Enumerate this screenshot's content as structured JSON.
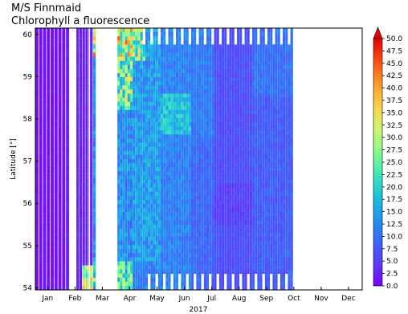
{
  "title": "M/S Finnmaid",
  "subtitle": "Chlorophyll a fluorescence",
  "chart_data": {
    "type": "heatmap",
    "title": "M/S Finnmaid",
    "subtitle": "Chlorophyll a fluorescence",
    "xlabel": "2017",
    "ylabel": "Latitude [°]",
    "x_ticks": [
      "Jan",
      "Feb",
      "Mar",
      "Apr",
      "May",
      "Jun",
      "Jul",
      "Aug",
      "Sep",
      "Oct",
      "Nov",
      "Dec"
    ],
    "y_ticks": [
      54,
      55,
      56,
      57,
      58,
      59,
      60
    ],
    "ylim": [
      53.95,
      60.15
    ],
    "xlim_months": [
      0.55,
      12.5
    ],
    "colorbar": {
      "ticks": [
        0.0,
        2.5,
        5.0,
        7.5,
        10.0,
        12.5,
        15.0,
        17.5,
        20.0,
        22.5,
        25.0,
        27.5,
        30.0,
        32.5,
        35.0,
        37.5,
        40.0,
        42.5,
        45.0,
        47.5,
        50.0
      ],
      "range": [
        0.0,
        50.0
      ],
      "colormap": [
        "#7a00ff",
        "#5b3cff",
        "#3a66ff",
        "#1f96f0",
        "#18c4d8",
        "#3ee8b8",
        "#8cfb8c",
        "#d2f46a",
        "#ffd249",
        "#ff9a26",
        "#ff4d12",
        "#e60000"
      ],
      "extend": "max"
    },
    "data_coverage": [
      {
        "period": "Jan",
        "typical_value": 1.0
      },
      {
        "period": "Feb",
        "typical_value": 2.5
      },
      {
        "period": "Mar",
        "typical_value": null
      },
      {
        "period": "Apr",
        "typical_value": 25.0
      },
      {
        "period": "May",
        "typical_value": 12.0
      },
      {
        "period": "Jun",
        "typical_value": 14.0
      },
      {
        "period": "Jul",
        "typical_value": 7.0
      },
      {
        "period": "Aug",
        "typical_value": 6.0
      },
      {
        "period": "Sep",
        "typical_value": 7.0
      },
      {
        "period": "Oct",
        "typical_value": null
      },
      {
        "period": "Nov",
        "typical_value": null
      },
      {
        "period": "Dec",
        "typical_value": null
      }
    ]
  }
}
